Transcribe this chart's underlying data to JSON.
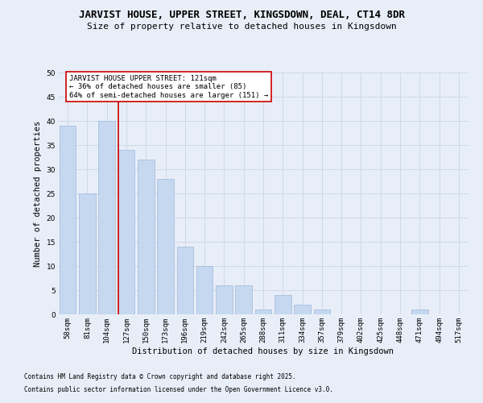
{
  "title1": "JARVIST HOUSE, UPPER STREET, KINGSDOWN, DEAL, CT14 8DR",
  "title2": "Size of property relative to detached houses in Kingsdown",
  "xlabel": "Distribution of detached houses by size in Kingsdown",
  "ylabel": "Number of detached properties",
  "categories": [
    "58sqm",
    "81sqm",
    "104sqm",
    "127sqm",
    "150sqm",
    "173sqm",
    "196sqm",
    "219sqm",
    "242sqm",
    "265sqm",
    "288sqm",
    "311sqm",
    "334sqm",
    "357sqm",
    "379sqm",
    "402sqm",
    "425sqm",
    "448sqm",
    "471sqm",
    "494sqm",
    "517sqm"
  ],
  "values": [
    39,
    25,
    40,
    34,
    32,
    28,
    14,
    10,
    6,
    6,
    1,
    4,
    2,
    1,
    0,
    0,
    0,
    0,
    1,
    0,
    0
  ],
  "bar_color": "#c5d8f0",
  "bar_edgecolor": "#a0b8d8",
  "grid_color": "#d0d8e8",
  "background_color": "#e8eef8",
  "redline_index": 3,
  "redline_color": "#cc0000",
  "annotation_text": "JARVIST HOUSE UPPER STREET: 121sqm\n← 36% of detached houses are smaller (85)\n64% of semi-detached houses are larger (151) →",
  "annotation_box_facecolor": "#ffffff",
  "annotation_box_edgecolor": "#cc0000",
  "ylim": [
    0,
    50
  ],
  "yticks": [
    0,
    5,
    10,
    15,
    20,
    25,
    30,
    35,
    40,
    45,
    50
  ],
  "footer1": "Contains HM Land Registry data © Crown copyright and database right 2025.",
  "footer2": "Contains public sector information licensed under the Open Government Licence v3.0.",
  "title1_fontsize": 9,
  "title2_fontsize": 8,
  "xlabel_fontsize": 7.5,
  "ylabel_fontsize": 7.5,
  "tick_fontsize": 6.5,
  "annotation_fontsize": 6.5,
  "footer_fontsize": 5.5
}
